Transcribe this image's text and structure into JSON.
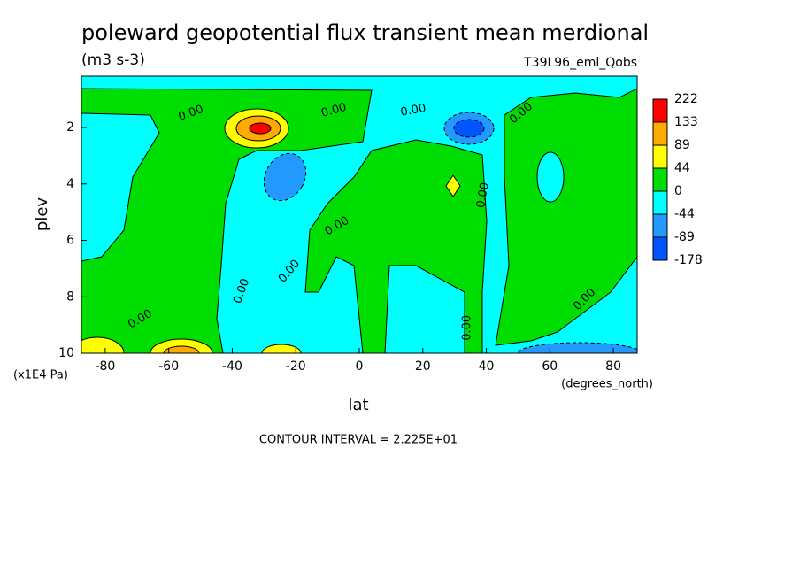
{
  "chart_data": {
    "type": "contour",
    "title": "poleward geopotential flux transient mean merdional",
    "subtitle": "(m3 s-3)",
    "dataset": "T39L96_eml_Qobs",
    "x_label": "lat",
    "y_label": "plev",
    "x_units": "(degrees_north)",
    "y_units": "(x1E4 Pa)",
    "footer": "CONTOUR INTERVAL = 2.225E+01",
    "xlim": [
      -87.5,
      87.5
    ],
    "ylim": [
      10,
      0.18
    ],
    "xticks": [
      -80,
      -60,
      -40,
      -20,
      0,
      20,
      40,
      60,
      80
    ],
    "yticks": [
      2,
      4,
      6,
      8,
      10
    ],
    "levels": [
      -178,
      -89,
      -44,
      0,
      44,
      89,
      133,
      222
    ],
    "colors": [
      "#0055ff",
      "#2299ff",
      "#00ffff",
      "#00dd00",
      "#ffff00",
      "#ffaa00",
      "#ff0000"
    ],
    "contour_labels": [
      {
        "text": "0.00",
        "lat": -53,
        "plev": 1.5
      },
      {
        "text": "0.00",
        "lat": -8,
        "plev": 1.4
      },
      {
        "text": "0.00",
        "lat": 17,
        "plev": 1.4
      },
      {
        "text": "0.00",
        "lat": 51,
        "plev": 1.5
      },
      {
        "text": "0.00",
        "lat": 39,
        "plev": 4.4
      },
      {
        "text": "0.00",
        "lat": -7,
        "plev": 5.5
      },
      {
        "text": "0.00",
        "lat": -22,
        "plev": 7.1
      },
      {
        "text": "0.00",
        "lat": -37,
        "plev": 7.8
      },
      {
        "text": "0.00",
        "lat": -69,
        "plev": 8.8
      },
      {
        "text": "0.00",
        "lat": 34,
        "plev": 9.1
      },
      {
        "text": "0.00",
        "lat": 71,
        "plev": 8.1
      }
    ]
  }
}
